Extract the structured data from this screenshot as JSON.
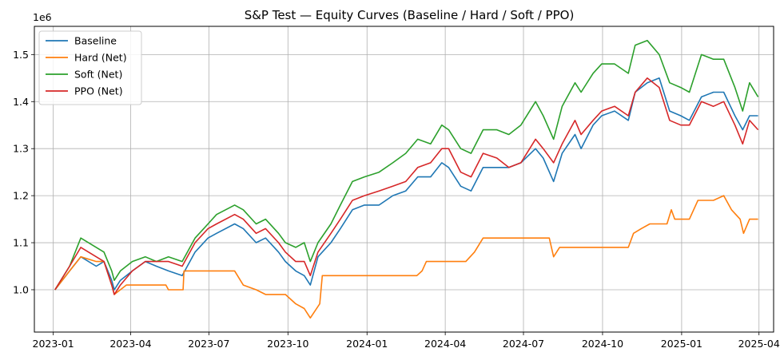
{
  "chart_data": {
    "type": "line",
    "title": "S&P Test — Equity Curves (Baseline / Hard / Soft / PPO)",
    "xlabel": "",
    "ylabel": "",
    "y_offset_label": "1e6",
    "x_range": [
      "2022-12-10",
      "2025-04-18"
    ],
    "ylim": [
      0.91,
      1.56
    ],
    "x_ticks": [
      {
        "date": "2023-01-01",
        "label": "2023-01"
      },
      {
        "date": "2023-04-01",
        "label": "2023-04"
      },
      {
        "date": "2023-07-01",
        "label": "2023-07"
      },
      {
        "date": "2023-10-01",
        "label": "2023-10"
      },
      {
        "date": "2024-01-01",
        "label": "2024-01"
      },
      {
        "date": "2024-04-01",
        "label": "2024-04"
      },
      {
        "date": "2024-07-01",
        "label": "2024-07"
      },
      {
        "date": "2024-10-01",
        "label": "2024-10"
      },
      {
        "date": "2025-01-01",
        "label": "2025-01"
      },
      {
        "date": "2025-04-01",
        "label": "2025-04"
      }
    ],
    "y_ticks": [
      {
        "value": 1.0,
        "label": "1.0"
      },
      {
        "value": 1.1,
        "label": "1.1"
      },
      {
        "value": 1.2,
        "label": "1.2"
      },
      {
        "value": 1.3,
        "label": "1.3"
      },
      {
        "value": 1.4,
        "label": "1.4"
      },
      {
        "value": 1.5,
        "label": "1.5"
      }
    ],
    "grid": true,
    "legend_position": "top-left",
    "series": [
      {
        "name": "Baseline",
        "color": "#1f77b4",
        "points": [
          [
            "2023-01-03",
            1.0
          ],
          [
            "2023-01-20",
            1.04
          ],
          [
            "2023-02-02",
            1.07
          ],
          [
            "2023-02-20",
            1.05
          ],
          [
            "2023-03-01",
            1.06
          ],
          [
            "2023-03-10",
            1.02
          ],
          [
            "2023-03-13",
            1.0
          ],
          [
            "2023-03-20",
            1.02
          ],
          [
            "2023-04-03",
            1.04
          ],
          [
            "2023-04-18",
            1.06
          ],
          [
            "2023-05-01",
            1.05
          ],
          [
            "2023-05-15",
            1.04
          ],
          [
            "2023-05-31",
            1.03
          ],
          [
            "2023-06-15",
            1.08
          ],
          [
            "2023-06-30",
            1.11
          ],
          [
            "2023-07-10",
            1.12
          ],
          [
            "2023-07-31",
            1.14
          ],
          [
            "2023-08-10",
            1.13
          ],
          [
            "2023-08-25",
            1.1
          ],
          [
            "2023-09-05",
            1.11
          ],
          [
            "2023-09-20",
            1.08
          ],
          [
            "2023-09-28",
            1.06
          ],
          [
            "2023-10-10",
            1.04
          ],
          [
            "2023-10-20",
            1.03
          ],
          [
            "2023-10-27",
            1.01
          ],
          [
            "2023-11-05",
            1.07
          ],
          [
            "2023-11-20",
            1.1
          ],
          [
            "2023-12-01",
            1.13
          ],
          [
            "2023-12-15",
            1.17
          ],
          [
            "2023-12-29",
            1.18
          ],
          [
            "2024-01-15",
            1.18
          ],
          [
            "2024-01-31",
            1.2
          ],
          [
            "2024-02-15",
            1.21
          ],
          [
            "2024-02-29",
            1.24
          ],
          [
            "2024-03-15",
            1.24
          ],
          [
            "2024-03-28",
            1.27
          ],
          [
            "2024-04-05",
            1.26
          ],
          [
            "2024-04-19",
            1.22
          ],
          [
            "2024-05-01",
            1.21
          ],
          [
            "2024-05-15",
            1.26
          ],
          [
            "2024-05-31",
            1.26
          ],
          [
            "2024-06-14",
            1.26
          ],
          [
            "2024-06-28",
            1.27
          ],
          [
            "2024-07-15",
            1.3
          ],
          [
            "2024-07-24",
            1.28
          ],
          [
            "2024-08-05",
            1.23
          ],
          [
            "2024-08-15",
            1.29
          ],
          [
            "2024-08-30",
            1.33
          ],
          [
            "2024-09-06",
            1.3
          ],
          [
            "2024-09-20",
            1.35
          ],
          [
            "2024-09-30",
            1.37
          ],
          [
            "2024-10-15",
            1.38
          ],
          [
            "2024-10-31",
            1.36
          ],
          [
            "2024-11-08",
            1.42
          ],
          [
            "2024-11-22",
            1.44
          ],
          [
            "2024-12-06",
            1.45
          ],
          [
            "2024-12-18",
            1.38
          ],
          [
            "2024-12-31",
            1.37
          ],
          [
            "2025-01-10",
            1.36
          ],
          [
            "2025-01-24",
            1.41
          ],
          [
            "2025-02-07",
            1.42
          ],
          [
            "2025-02-19",
            1.42
          ],
          [
            "2025-03-04",
            1.37
          ],
          [
            "2025-03-13",
            1.34
          ],
          [
            "2025-03-21",
            1.37
          ],
          [
            "2025-03-31",
            1.37
          ]
        ]
      },
      {
        "name": "Hard (Net)",
        "color": "#ff7f0e",
        "points": [
          [
            "2023-01-03",
            1.0
          ],
          [
            "2023-01-20",
            1.04
          ],
          [
            "2023-02-02",
            1.07
          ],
          [
            "2023-02-20",
            1.06
          ],
          [
            "2023-03-01",
            1.06
          ],
          [
            "2023-03-10",
            1.01
          ],
          [
            "2023-03-13",
            0.99
          ],
          [
            "2023-03-20",
            1.0
          ],
          [
            "2023-03-27",
            1.01
          ],
          [
            "2023-05-12",
            1.01
          ],
          [
            "2023-05-15",
            1.0
          ],
          [
            "2023-06-01",
            1.0
          ],
          [
            "2023-06-02",
            1.04
          ],
          [
            "2023-07-31",
            1.04
          ],
          [
            "2023-08-10",
            1.01
          ],
          [
            "2023-08-25",
            1.0
          ],
          [
            "2023-09-05",
            0.99
          ],
          [
            "2023-09-28",
            0.99
          ],
          [
            "2023-10-10",
            0.97
          ],
          [
            "2023-10-20",
            0.96
          ],
          [
            "2023-10-27",
            0.94
          ],
          [
            "2023-11-07",
            0.97
          ],
          [
            "2023-11-10",
            1.03
          ],
          [
            "2024-02-28",
            1.03
          ],
          [
            "2024-03-05",
            1.04
          ],
          [
            "2024-03-10",
            1.06
          ],
          [
            "2024-04-25",
            1.06
          ],
          [
            "2024-05-05",
            1.08
          ],
          [
            "2024-05-15",
            1.11
          ],
          [
            "2024-07-31",
            1.11
          ],
          [
            "2024-08-05",
            1.07
          ],
          [
            "2024-08-12",
            1.09
          ],
          [
            "2024-10-31",
            1.09
          ],
          [
            "2024-11-06",
            1.12
          ],
          [
            "2024-11-15",
            1.13
          ],
          [
            "2024-11-25",
            1.14
          ],
          [
            "2024-12-15",
            1.14
          ],
          [
            "2024-12-20",
            1.17
          ],
          [
            "2024-12-24",
            1.15
          ],
          [
            "2025-01-10",
            1.15
          ],
          [
            "2025-01-20",
            1.19
          ],
          [
            "2025-02-07",
            1.19
          ],
          [
            "2025-02-19",
            1.2
          ],
          [
            "2025-02-28",
            1.17
          ],
          [
            "2025-03-10",
            1.15
          ],
          [
            "2025-03-14",
            1.12
          ],
          [
            "2025-03-21",
            1.15
          ],
          [
            "2025-03-31",
            1.15
          ]
        ]
      },
      {
        "name": "Soft (Net)",
        "color": "#2ca02c",
        "points": [
          [
            "2023-01-03",
            1.0
          ],
          [
            "2023-01-20",
            1.05
          ],
          [
            "2023-02-02",
            1.11
          ],
          [
            "2023-02-20",
            1.09
          ],
          [
            "2023-03-01",
            1.08
          ],
          [
            "2023-03-10",
            1.04
          ],
          [
            "2023-03-13",
            1.02
          ],
          [
            "2023-03-20",
            1.04
          ],
          [
            "2023-04-03",
            1.06
          ],
          [
            "2023-04-18",
            1.07
          ],
          [
            "2023-05-01",
            1.06
          ],
          [
            "2023-05-15",
            1.07
          ],
          [
            "2023-05-31",
            1.06
          ],
          [
            "2023-06-15",
            1.11
          ],
          [
            "2023-06-30",
            1.14
          ],
          [
            "2023-07-10",
            1.16
          ],
          [
            "2023-07-31",
            1.18
          ],
          [
            "2023-08-10",
            1.17
          ],
          [
            "2023-08-25",
            1.14
          ],
          [
            "2023-09-05",
            1.15
          ],
          [
            "2023-09-20",
            1.12
          ],
          [
            "2023-09-28",
            1.1
          ],
          [
            "2023-10-10",
            1.09
          ],
          [
            "2023-10-20",
            1.1
          ],
          [
            "2023-10-27",
            1.06
          ],
          [
            "2023-11-05",
            1.1
          ],
          [
            "2023-11-20",
            1.14
          ],
          [
            "2023-12-01",
            1.18
          ],
          [
            "2023-12-15",
            1.23
          ],
          [
            "2023-12-29",
            1.24
          ],
          [
            "2024-01-15",
            1.25
          ],
          [
            "2024-01-31",
            1.27
          ],
          [
            "2024-02-15",
            1.29
          ],
          [
            "2024-02-29",
            1.32
          ],
          [
            "2024-03-15",
            1.31
          ],
          [
            "2024-03-28",
            1.35
          ],
          [
            "2024-04-05",
            1.34
          ],
          [
            "2024-04-19",
            1.3
          ],
          [
            "2024-05-01",
            1.29
          ],
          [
            "2024-05-15",
            1.34
          ],
          [
            "2024-05-31",
            1.34
          ],
          [
            "2024-06-14",
            1.33
          ],
          [
            "2024-06-28",
            1.35
          ],
          [
            "2024-07-15",
            1.4
          ],
          [
            "2024-07-24",
            1.37
          ],
          [
            "2024-08-05",
            1.32
          ],
          [
            "2024-08-15",
            1.39
          ],
          [
            "2024-08-30",
            1.44
          ],
          [
            "2024-09-06",
            1.42
          ],
          [
            "2024-09-20",
            1.46
          ],
          [
            "2024-09-30",
            1.48
          ],
          [
            "2024-10-15",
            1.48
          ],
          [
            "2024-10-31",
            1.46
          ],
          [
            "2024-11-08",
            1.52
          ],
          [
            "2024-11-22",
            1.53
          ],
          [
            "2024-12-06",
            1.5
          ],
          [
            "2024-12-18",
            1.44
          ],
          [
            "2024-12-31",
            1.43
          ],
          [
            "2025-01-10",
            1.42
          ],
          [
            "2025-01-24",
            1.5
          ],
          [
            "2025-02-07",
            1.49
          ],
          [
            "2025-02-19",
            1.49
          ],
          [
            "2025-03-04",
            1.43
          ],
          [
            "2025-03-13",
            1.38
          ],
          [
            "2025-03-21",
            1.44
          ],
          [
            "2025-03-31",
            1.41
          ]
        ]
      },
      {
        "name": "PPO (Net)",
        "color": "#d62728",
        "points": [
          [
            "2023-01-03",
            1.0
          ],
          [
            "2023-01-20",
            1.05
          ],
          [
            "2023-02-02",
            1.09
          ],
          [
            "2023-02-20",
            1.07
          ],
          [
            "2023-03-01",
            1.06
          ],
          [
            "2023-03-10",
            1.01
          ],
          [
            "2023-03-13",
            0.99
          ],
          [
            "2023-03-20",
            1.01
          ],
          [
            "2023-04-03",
            1.04
          ],
          [
            "2023-04-18",
            1.06
          ],
          [
            "2023-05-01",
            1.06
          ],
          [
            "2023-05-15",
            1.06
          ],
          [
            "2023-05-31",
            1.05
          ],
          [
            "2023-06-15",
            1.1
          ],
          [
            "2023-06-30",
            1.13
          ],
          [
            "2023-07-10",
            1.14
          ],
          [
            "2023-07-31",
            1.16
          ],
          [
            "2023-08-10",
            1.15
          ],
          [
            "2023-08-25",
            1.12
          ],
          [
            "2023-09-05",
            1.13
          ],
          [
            "2023-09-20",
            1.1
          ],
          [
            "2023-09-28",
            1.08
          ],
          [
            "2023-10-10",
            1.06
          ],
          [
            "2023-10-20",
            1.06
          ],
          [
            "2023-10-27",
            1.03
          ],
          [
            "2023-11-05",
            1.08
          ],
          [
            "2023-11-20",
            1.12
          ],
          [
            "2023-12-01",
            1.15
          ],
          [
            "2023-12-15",
            1.19
          ],
          [
            "2023-12-29",
            1.2
          ],
          [
            "2024-01-15",
            1.21
          ],
          [
            "2024-01-31",
            1.22
          ],
          [
            "2024-02-15",
            1.23
          ],
          [
            "2024-02-29",
            1.26
          ],
          [
            "2024-03-15",
            1.27
          ],
          [
            "2024-03-28",
            1.3
          ],
          [
            "2024-04-05",
            1.3
          ],
          [
            "2024-04-19",
            1.25
          ],
          [
            "2024-05-01",
            1.24
          ],
          [
            "2024-05-15",
            1.29
          ],
          [
            "2024-05-31",
            1.28
          ],
          [
            "2024-06-14",
            1.26
          ],
          [
            "2024-06-28",
            1.27
          ],
          [
            "2024-07-15",
            1.32
          ],
          [
            "2024-07-24",
            1.3
          ],
          [
            "2024-08-05",
            1.27
          ],
          [
            "2024-08-15",
            1.31
          ],
          [
            "2024-08-30",
            1.36
          ],
          [
            "2024-09-06",
            1.33
          ],
          [
            "2024-09-20",
            1.36
          ],
          [
            "2024-09-30",
            1.38
          ],
          [
            "2024-10-15",
            1.39
          ],
          [
            "2024-10-31",
            1.37
          ],
          [
            "2024-11-08",
            1.42
          ],
          [
            "2024-11-22",
            1.45
          ],
          [
            "2024-12-06",
            1.43
          ],
          [
            "2024-12-18",
            1.36
          ],
          [
            "2024-12-31",
            1.35
          ],
          [
            "2025-01-10",
            1.35
          ],
          [
            "2025-01-24",
            1.4
          ],
          [
            "2025-02-07",
            1.39
          ],
          [
            "2025-02-19",
            1.4
          ],
          [
            "2025-03-04",
            1.35
          ],
          [
            "2025-03-13",
            1.31
          ],
          [
            "2025-03-21",
            1.36
          ],
          [
            "2025-03-31",
            1.34
          ]
        ]
      }
    ]
  }
}
